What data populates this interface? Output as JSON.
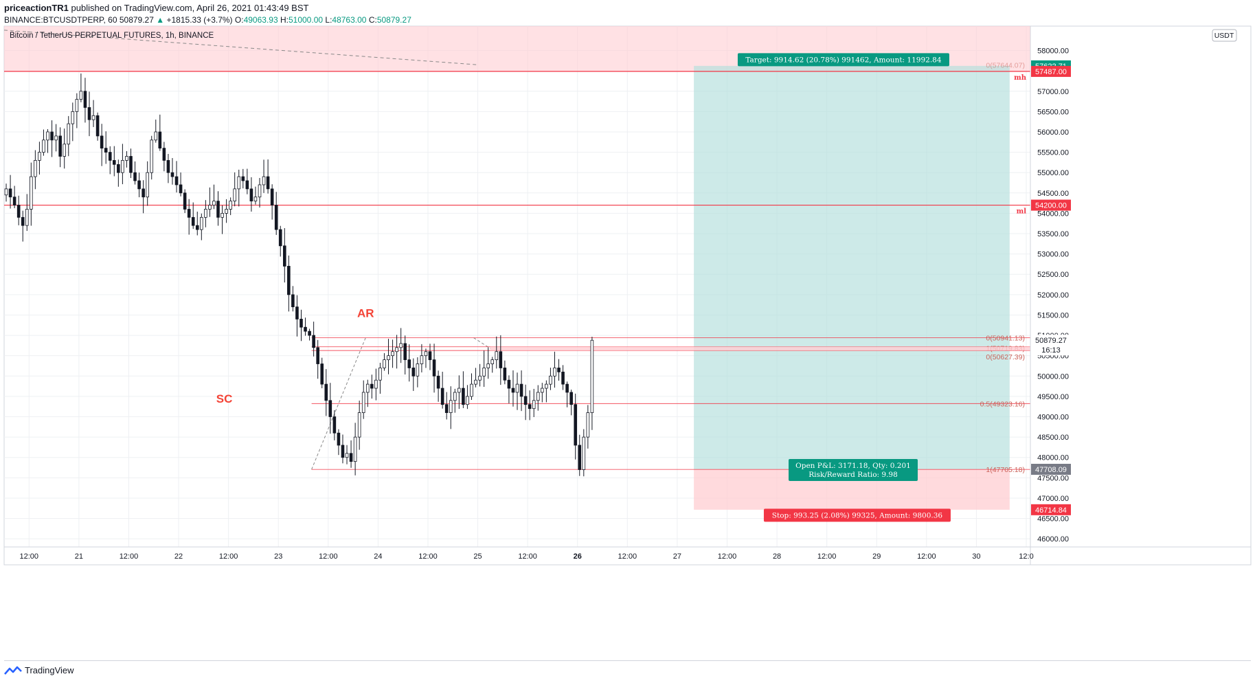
{
  "header": {
    "author": "priceactionTR1",
    "published": " published on TradingView.com, April 26, 2021 01:43:49 BST",
    "symbol_line_prefix": "BINANCE:BTCUSDTPERP, 60",
    "last": "50879.27",
    "change": "+1815.33 (+3.7%)",
    "o_label": "O:",
    "o": "49063.93",
    "h_label": "H:",
    "h": "51000.00",
    "l_label": "L:",
    "l": "48763.00",
    "c_label": "C:",
    "c": "50879.27"
  },
  "footer": {
    "brand": "TradingView"
  },
  "chart_data": {
    "type": "candlestick",
    "title": "Bitcoin / TetherUS PERPETUAL FUTURES, 1h, BINANCE",
    "currency": "USDT",
    "x_time_unit": "hours since Apr 20 06:00 (1h bars)",
    "xlim": [
      0,
      246
    ],
    "ylim": [
      45800,
      58600
    ],
    "x_ticks": [
      {
        "t": 6,
        "label": "12:00"
      },
      {
        "t": 18,
        "label": "21"
      },
      {
        "t": 30,
        "label": "12:00"
      },
      {
        "t": 42,
        "label": "22"
      },
      {
        "t": 54,
        "label": "12:00"
      },
      {
        "t": 66,
        "label": "23"
      },
      {
        "t": 78,
        "label": "12:00"
      },
      {
        "t": 90,
        "label": "24"
      },
      {
        "t": 102,
        "label": "12:00"
      },
      {
        "t": 114,
        "label": "25"
      },
      {
        "t": 126,
        "label": "12:00"
      },
      {
        "t": 138,
        "label": "26",
        "bold": true
      },
      {
        "t": 150,
        "label": "12:00"
      },
      {
        "t": 162,
        "label": "27"
      },
      {
        "t": 174,
        "label": "12:00"
      },
      {
        "t": 186,
        "label": "28"
      },
      {
        "t": 198,
        "label": "12:00"
      },
      {
        "t": 210,
        "label": "29"
      },
      {
        "t": 222,
        "label": "12:00"
      },
      {
        "t": 234,
        "label": "30"
      },
      {
        "t": 246,
        "label": "12:0"
      }
    ],
    "y_ticks": [
      46000,
      46500,
      47000,
      47500,
      48000,
      48500,
      49000,
      49500,
      50000,
      50500,
      51000,
      51500,
      52000,
      52500,
      53000,
      53500,
      54000,
      54500,
      55000,
      55500,
      56000,
      56500,
      57000,
      58000
    ],
    "y_tick_labels": [
      "46000.00",
      "46500.00",
      "47000.00",
      "47500.00",
      "48000.00",
      "48500.00",
      "49000.00",
      "49500.00",
      "50000.00",
      "50500.00",
      "51000.00",
      "51500.00",
      "52000.00",
      "52500.00",
      "53000.00",
      "53500.00",
      "54000.00",
      "54500.00",
      "55000.00",
      "55500.00",
      "56000.00",
      "56500.00",
      "57000.00",
      "58000.00"
    ],
    "closes": [
      54600,
      54400,
      54200,
      53900,
      53700,
      54100,
      54900,
      55300,
      55500,
      55800,
      56000,
      55800,
      55900,
      55400,
      55700,
      56200,
      56500,
      56800,
      57000,
      56600,
      56300,
      56400,
      55900,
      55600,
      55500,
      55300,
      55200,
      55000,
      55300,
      55400,
      55000,
      54800,
      54600,
      54400,
      55000,
      55800,
      56000,
      55600,
      55300,
      55000,
      54900,
      54700,
      54500,
      54100,
      53900,
      53700,
      53600,
      53900,
      54100,
      54200,
      54300,
      53900,
      54000,
      54100,
      54300,
      54600,
      54900,
      54800,
      54600,
      54300,
      54400,
      54700,
      54900,
      54600,
      54200,
      53600,
      53200,
      52700,
      52000,
      51700,
      51400,
      51200,
      51100,
      51000,
      50700,
      50300,
      49800,
      49400,
      49000,
      48600,
      48300,
      48000,
      48100,
      47900,
      48500,
      49100,
      49600,
      49800,
      49700,
      49900,
      50200,
      50400,
      50500,
      50600,
      50700,
      50800,
      50400,
      50200,
      50000,
      50300,
      50500,
      50600,
      50400,
      50000,
      49700,
      49300,
      49100,
      49400,
      49600,
      49700,
      49300,
      49500,
      49800,
      49900,
      50000,
      50200,
      50300,
      50400,
      50600,
      50200,
      49900,
      49700,
      49600,
      49800,
      49500,
      49300,
      49200,
      49400,
      49600,
      49700,
      49800,
      50000,
      50200,
      50100,
      49800,
      49600,
      49300,
      48300,
      47700,
      48500,
      49100,
      50879.27
    ],
    "level_lines": [
      {
        "price": 57487.0,
        "tag": "57487.00",
        "label": "mh",
        "from_t": 0
      },
      {
        "price": 54200.0,
        "tag": "54200.00",
        "label": "ml",
        "from_t": 0
      }
    ],
    "fib": {
      "from_t": 74,
      "to_t": 240,
      "levels": [
        {
          "price": 50941.13,
          "label": "0(50941.13)"
        },
        {
          "price": 50719.83,
          "label": "1(50719.83)"
        },
        {
          "price": 50627.39,
          "label": "0(50627.39)"
        },
        {
          "price": 49323.16,
          "label": "0.5(49323.16)"
        },
        {
          "price": 47705.18,
          "label": "1(47705.18)"
        },
        {
          "price": 57644.07,
          "label": "0(57644.07)"
        }
      ]
    },
    "top_zone": {
      "low": 57487.0,
      "high": 58600
    },
    "position": {
      "entry": 47708.09,
      "target": 57622.71,
      "stop": 46714.84,
      "from_t": 166,
      "to_t": 242,
      "target_label": "Target: 9914.62 (20.78%) 991462, Amount: 11992.84",
      "stop_label": "Stop: 993.25 (2.08%) 99325, Amount: 9800.36",
      "pnl_label": "Open P&L: 3171.18, Qty: 0.201",
      "rr_label": "Risk/Reward Ratio: 9.98",
      "target_tag": "57622.71",
      "entry_tag": "47708.09",
      "stop_tag": "46714.84"
    },
    "last_price": {
      "price": 50879.27,
      "tag": "50879.27",
      "countdown": "16:13"
    },
    "annotations": [
      {
        "text": "AR",
        "t": 87,
        "price": 51450
      },
      {
        "text": "SC",
        "t": 53,
        "price": 49350
      }
    ],
    "colors": {
      "green_zone": "#b2dfdb",
      "red_zone": "#ffcdd2",
      "red_line": "#f23645",
      "green_tag": "#089981",
      "red_tag": "#f23645",
      "annotation": "#f44336",
      "candle": "#131722",
      "grid": "#eef0f3"
    },
    "grid": true
  }
}
